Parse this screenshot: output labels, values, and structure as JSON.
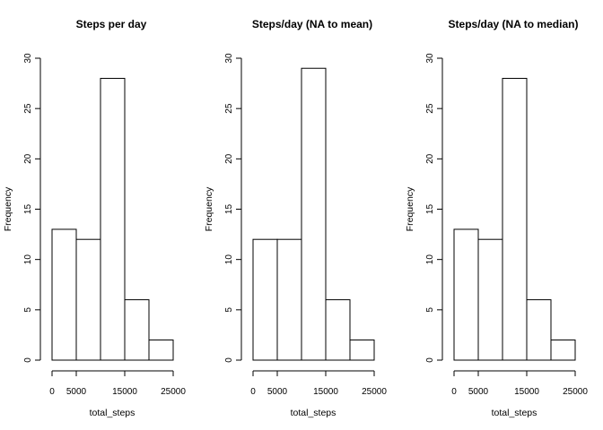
{
  "chart_data": [
    {
      "type": "bar",
      "title": "Steps per day",
      "xlabel": "total_steps",
      "ylabel": "Frequency",
      "bin_edges": [
        0,
        5000,
        10000,
        15000,
        20000,
        25000
      ],
      "values": [
        13,
        12,
        28,
        6,
        2
      ],
      "xticks": [
        "0",
        "5000",
        "15000",
        "25000"
      ],
      "xtick_values": [
        0,
        5000,
        15000,
        25000
      ],
      "yticks": [
        0,
        5,
        10,
        15,
        20,
        25,
        30
      ],
      "ylim": [
        0,
        30
      ],
      "xlim": [
        0,
        25000
      ]
    },
    {
      "type": "bar",
      "title": "Steps/day (NA to mean)",
      "xlabel": "total_steps",
      "ylabel": "Frequency",
      "bin_edges": [
        0,
        5000,
        10000,
        15000,
        20000,
        25000
      ],
      "values": [
        12,
        12,
        29,
        6,
        2
      ],
      "xticks": [
        "0",
        "5000",
        "15000",
        "25000"
      ],
      "xtick_values": [
        0,
        5000,
        15000,
        25000
      ],
      "yticks": [
        0,
        5,
        10,
        15,
        20,
        25,
        30
      ],
      "ylim": [
        0,
        30
      ],
      "xlim": [
        0,
        25000
      ]
    },
    {
      "type": "bar",
      "title": "Steps/day (NA to median)",
      "xlabel": "total_steps",
      "ylabel": "Frequency",
      "bin_edges": [
        0,
        5000,
        10000,
        15000,
        20000,
        25000
      ],
      "values": [
        13,
        12,
        28,
        6,
        2
      ],
      "xticks": [
        "0",
        "5000",
        "15000",
        "25000"
      ],
      "xtick_values": [
        0,
        5000,
        15000,
        25000
      ],
      "yticks": [
        0,
        5,
        10,
        15,
        20,
        25,
        30
      ],
      "ylim": [
        0,
        30
      ],
      "xlim": [
        0,
        25000
      ]
    }
  ]
}
